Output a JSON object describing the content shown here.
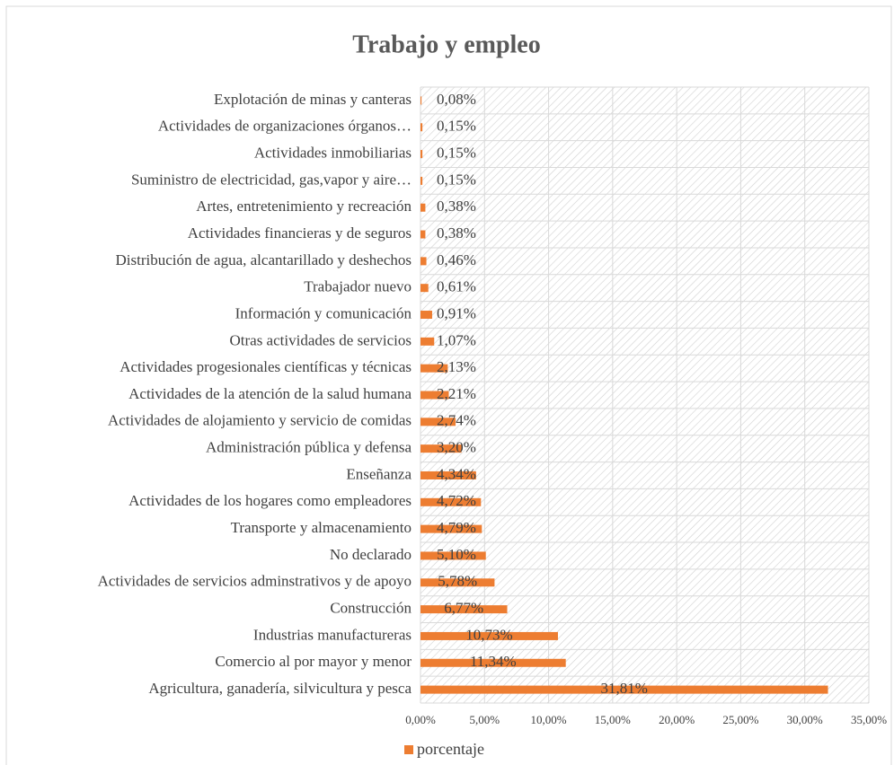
{
  "chart_data": {
    "type": "barh",
    "title": "Trabajo y empleo",
    "categories": [
      "Explotación de minas y canteras",
      "Actividades de organizaciones órganos…",
      "Actividades inmobiliarias",
      "Suministro de electricidad, gas,vapor y aire…",
      "Artes, entretenimiento y recreación",
      "Actividades financieras y de seguros",
      "Distribución de agua, alcantarillado y deshechos",
      "Trabajador nuevo",
      "Información y comunicación",
      "Otras actividades de servicios",
      "Actividades progesionales científicas y técnicas",
      "Actividades de la atención de la salud humana",
      "Actividades de alojamiento y servicio de comidas",
      "Administración pública y defensa",
      "Enseñanza",
      "Actividades de los hogares como empleadores",
      "Transporte y almacenamiento",
      "No declarado",
      "Actividades de servicios adminstrativos y de apoyo",
      "Construcción",
      "Industrias manufactureras",
      "Comercio al por mayor y menor",
      "Agricultura, ganadería, silvicultura y pesca"
    ],
    "series": [
      {
        "name": "porcentaje",
        "color": "#ed7d31",
        "values": [
          0.08,
          0.15,
          0.15,
          0.15,
          0.38,
          0.38,
          0.46,
          0.61,
          0.91,
          1.07,
          2.13,
          2.21,
          2.74,
          3.2,
          4.34,
          4.72,
          4.79,
          5.1,
          5.78,
          6.77,
          10.73,
          11.34,
          31.81
        ],
        "value_labels": [
          "0,08%",
          "0,15%",
          "0,15%",
          "0,15%",
          "0,38%",
          "0,38%",
          "0,46%",
          "0,61%",
          "0,91%",
          "1,07%",
          "2,13%",
          "2,21%",
          "2,74%",
          "3,20%",
          "4,34%",
          "4,72%",
          "4,79%",
          "5,10%",
          "5,78%",
          "6,77%",
          "10,73%",
          "11,34%",
          "31,81%"
        ]
      }
    ],
    "xlim": [
      0,
      35
    ],
    "xticks": [
      {
        "value": 0,
        "label": "0,00%"
      },
      {
        "value": 5,
        "label": "5,00%"
      },
      {
        "value": 10,
        "label": "10,00%"
      },
      {
        "value": 15,
        "label": "15,00%"
      },
      {
        "value": 20,
        "label": "20,00%"
      },
      {
        "value": 25,
        "label": "25,00%"
      },
      {
        "value": 30,
        "label": "30,00%"
      },
      {
        "value": 35,
        "label": "35,00%"
      }
    ],
    "grid": true,
    "legend": "bottom"
  }
}
